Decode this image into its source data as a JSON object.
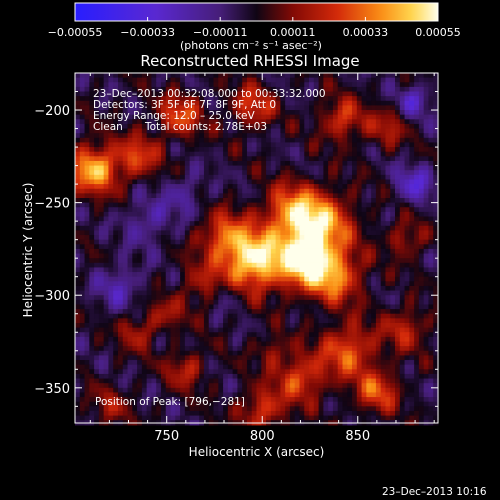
{
  "chart_data": {
    "type": "heatmap",
    "title": "Reconstructed RHESSI Image",
    "xlabel": "Heliocentric X (arcsec)",
    "ylabel": "Heliocentric Y (arcsec)",
    "xlim": [
      702,
      892
    ],
    "ylim": [
      -369,
      -180
    ],
    "xticks": [
      {
        "value": 750,
        "label": "750"
      },
      {
        "value": 800,
        "label": "800"
      },
      {
        "value": 850,
        "label": "850"
      }
    ],
    "yticks": [
      {
        "value": -200,
        "label": "−200"
      },
      {
        "value": -250,
        "label": "−250"
      },
      {
        "value": -300,
        "label": "−300"
      },
      {
        "value": -350,
        "label": "−350"
      }
    ],
    "colorbar": {
      "range": [
        -0.00055,
        0.00055
      ],
      "ticks": [
        {
          "value": -0.00055,
          "label": "−0.00055"
        },
        {
          "value": -0.00033,
          "label": "−0.00033"
        },
        {
          "value": -0.00011,
          "label": "−0.00011"
        },
        {
          "value": 0.00011,
          "label": "0.00011"
        },
        {
          "value": 0.00033,
          "label": "0.00033"
        },
        {
          "value": 0.00055,
          "label": "0.00055"
        }
      ],
      "units_label": "(photons cm⁻² s⁻¹ asec⁻²)"
    },
    "annotations": {
      "time_range": "23–Dec–2013 00:32:08.000 to 00:33:32.000",
      "detectors": "Detectors: 3F 5F 6F 7F 8F 9F, Att 0",
      "energy": "Energy Range: 12.0 – 25.0 keV",
      "algorithm": "Clean",
      "counts": "Total counts: 2.78E+03",
      "peak": "Position of Peak: [796,−281]"
    },
    "peak": [
      796,
      -281
    ],
    "blobs": [
      {
        "x": 796,
        "y": -281,
        "amp": 1.0,
        "sigma": 11
      },
      {
        "x": 822,
        "y": -282,
        "amp": 0.85,
        "sigma": 10
      },
      {
        "x": 830,
        "y": -262,
        "amp": 0.8,
        "sigma": 12
      },
      {
        "x": 815,
        "y": -255,
        "amp": 0.6,
        "sigma": 10
      },
      {
        "x": 838,
        "y": -290,
        "amp": 0.65,
        "sigma": 10
      },
      {
        "x": 780,
        "y": -268,
        "amp": 0.55,
        "sigma": 9
      },
      {
        "x": 770,
        "y": -295,
        "amp": 0.35,
        "sigma": 9
      },
      {
        "x": 712,
        "y": -232,
        "amp": 0.85,
        "sigma": 9
      },
      {
        "x": 735,
        "y": -225,
        "amp": 0.5,
        "sigma": 8
      },
      {
        "x": 757,
        "y": -203,
        "amp": 0.55,
        "sigma": 8
      },
      {
        "x": 795,
        "y": -198,
        "amp": 0.5,
        "sigma": 8
      },
      {
        "x": 842,
        "y": -205,
        "amp": 0.5,
        "sigma": 8
      },
      {
        "x": 865,
        "y": -210,
        "amp": 0.35,
        "sigma": 7
      },
      {
        "x": 845,
        "y": -330,
        "amp": 0.6,
        "sigma": 10
      },
      {
        "x": 820,
        "y": -345,
        "amp": 0.55,
        "sigma": 9
      },
      {
        "x": 800,
        "y": -362,
        "amp": 0.5,
        "sigma": 8
      },
      {
        "x": 860,
        "y": -352,
        "amp": 0.55,
        "sigma": 8
      },
      {
        "x": 875,
        "y": -318,
        "amp": 0.4,
        "sigma": 8
      },
      {
        "x": 875,
        "y": -270,
        "amp": 0.35,
        "sigma": 7
      },
      {
        "x": 760,
        "y": -340,
        "amp": 0.4,
        "sigma": 7
      },
      {
        "x": 735,
        "y": -320,
        "amp": 0.35,
        "sigma": 7
      },
      {
        "x": 720,
        "y": -360,
        "amp": 0.3,
        "sigma": 7
      },
      {
        "x": 750,
        "y": -310,
        "amp": 0.3,
        "sigma": 6
      },
      {
        "x": 805,
        "y": -330,
        "amp": 0.3,
        "sigma": 6
      },
      {
        "x": 725,
        "y": -295,
        "amp": -0.35,
        "sigma": 8
      },
      {
        "x": 740,
        "y": -260,
        "amp": -0.3,
        "sigma": 9
      },
      {
        "x": 760,
        "y": -245,
        "amp": -0.25,
        "sigma": 8
      },
      {
        "x": 880,
        "y": -240,
        "amp": -0.45,
        "sigma": 7
      },
      {
        "x": 880,
        "y": -195,
        "amp": -0.4,
        "sigma": 6
      },
      {
        "x": 780,
        "y": -300,
        "amp": -0.3,
        "sigma": 6
      }
    ]
  },
  "footer": {
    "timestamp": "23–Dec–2013 10:16"
  }
}
